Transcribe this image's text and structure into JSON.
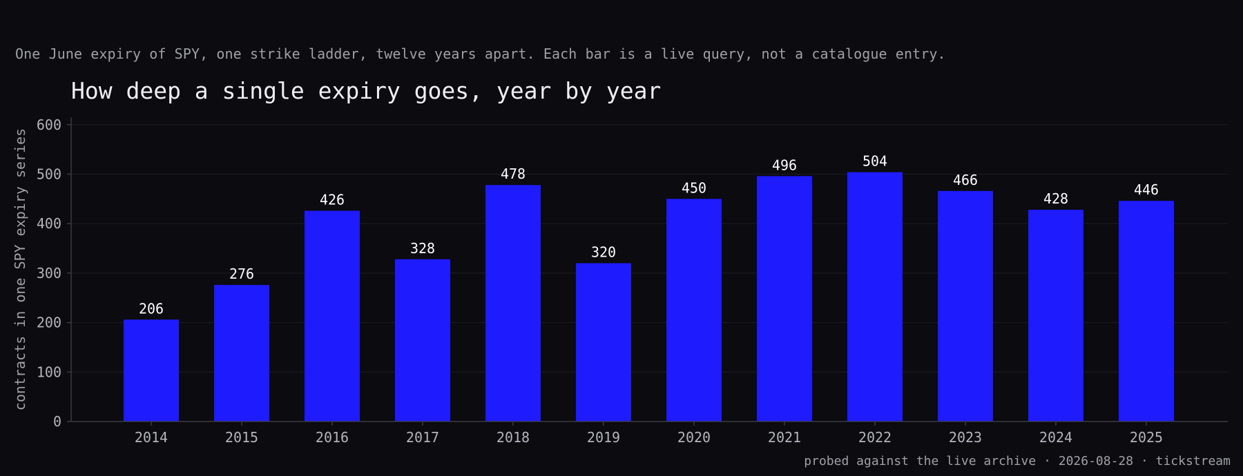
{
  "subtitle": "One June expiry of SPY, one strike ladder, twelve years apart. Each bar is a live query, not a catalogue entry.",
  "footer": "probed against the live archive · 2026-08-28 · tickstream",
  "chart_data": {
    "type": "bar",
    "title": "How deep a single expiry goes, year by year",
    "xlabel": "",
    "ylabel": "contracts in one SPY expiry series",
    "categories": [
      "2014",
      "2015",
      "2016",
      "2017",
      "2018",
      "2019",
      "2020",
      "2021",
      "2022",
      "2023",
      "2024",
      "2025"
    ],
    "values": [
      206,
      276,
      426,
      328,
      478,
      320,
      450,
      496,
      504,
      466,
      428,
      446
    ],
    "ylim": [
      0,
      615
    ],
    "yticks": [
      0,
      100,
      200,
      300,
      400,
      500,
      600
    ],
    "grid": true,
    "bar_color": "#1f1bff",
    "background": "#0b0b10"
  }
}
